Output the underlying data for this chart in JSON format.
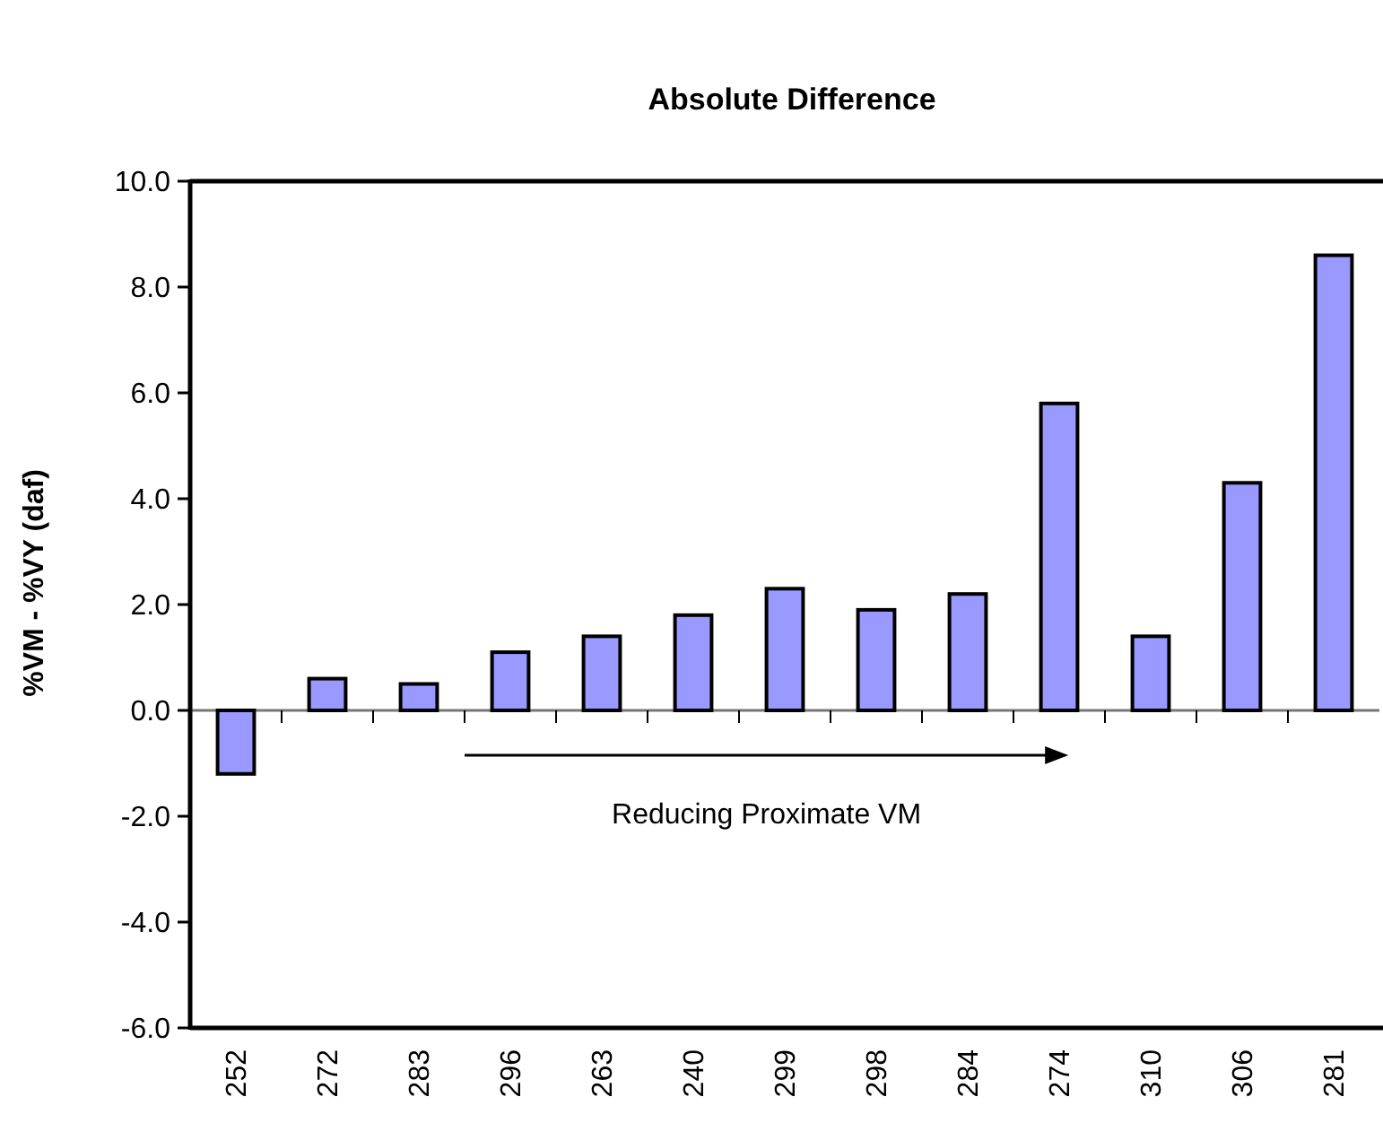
{
  "chart_data": {
    "type": "bar",
    "title": "Absolute Difference",
    "ylabel": "%VM - %VY (daf)",
    "categories": [
      "252",
      "272",
      "283",
      "296",
      "263",
      "240",
      "299",
      "298",
      "284",
      "274",
      "310",
      "306",
      "281"
    ],
    "values": [
      -1.2,
      0.6,
      0.5,
      1.1,
      1.4,
      1.8,
      2.3,
      1.9,
      2.2,
      5.8,
      1.4,
      4.3,
      8.6
    ],
    "color": "#9999ff",
    "ylim": [
      -6,
      10
    ],
    "yticks": [
      {
        "value": -6,
        "label": "-6.0"
      },
      {
        "value": -4,
        "label": "-4.0"
      },
      {
        "value": -2,
        "label": "-2.0"
      },
      {
        "value": 0,
        "label": "0.0"
      },
      {
        "value": 2,
        "label": "2.0"
      },
      {
        "value": 4,
        "label": "4.0"
      },
      {
        "value": 6,
        "label": "6.0"
      },
      {
        "value": 8,
        "label": "8.0"
      },
      {
        "value": 10,
        "label": "10.0"
      }
    ],
    "annotations": [
      "Reducing Proximate VM"
    ]
  }
}
